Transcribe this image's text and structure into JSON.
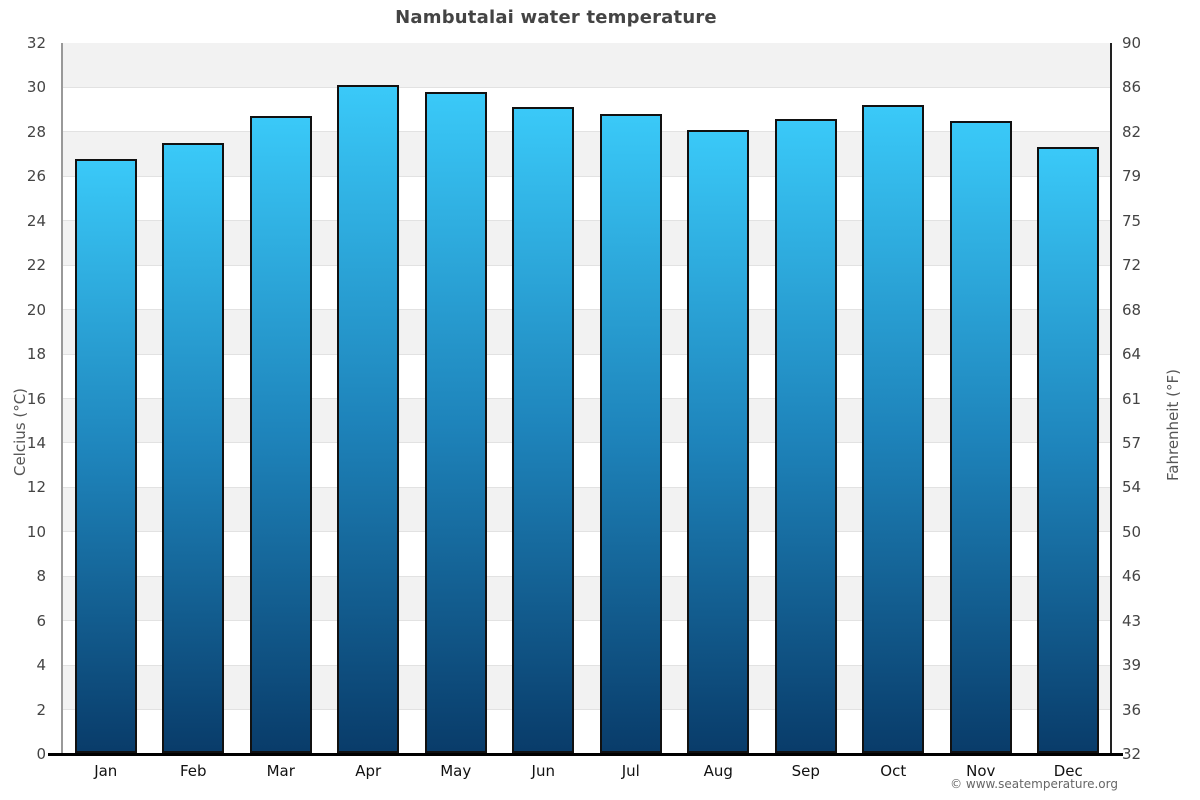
{
  "page": {
    "credit": "© www.seatemperature.org"
  },
  "chart_data": {
    "type": "bar",
    "title": "Nambutalai water temperature",
    "categories": [
      "Jan",
      "Feb",
      "Mar",
      "Apr",
      "May",
      "Jun",
      "Jul",
      "Aug",
      "Sep",
      "Oct",
      "Nov",
      "Dec"
    ],
    "values": [
      26.8,
      27.5,
      28.7,
      30.1,
      29.8,
      29.1,
      28.8,
      28.1,
      28.6,
      29.2,
      28.5,
      27.3
    ],
    "value_unit": "°C",
    "xlabel": "",
    "ylabel_left": "Celcius (°C)",
    "ylabel_right": "Fahrenheit (°F)",
    "ylim": [
      0,
      32
    ],
    "yticks_left": [
      32,
      30,
      28,
      26,
      24,
      22,
      20,
      18,
      16,
      14,
      12,
      10,
      8,
      6,
      4,
      2,
      0
    ],
    "yticks_right": [
      90,
      86,
      82,
      79,
      75,
      72,
      68,
      64,
      61,
      57,
      54,
      50,
      46,
      43,
      39,
      36,
      32
    ],
    "grid": "alternating-horizontal-bands-every-2C",
    "legend": "none",
    "colors": {
      "bar_top": "#3ac9f8",
      "bar_mid": "#1e84bb",
      "bar_bottom": "#093c6a",
      "bar_border": "#111111",
      "band": "#f2f2f2",
      "gridline": "#e2e2e2",
      "plot_background": "#ffffff",
      "title_text": "#444444",
      "tick_text": "#444444",
      "month_text": "#111111",
      "credit_text": "#666666"
    }
  }
}
